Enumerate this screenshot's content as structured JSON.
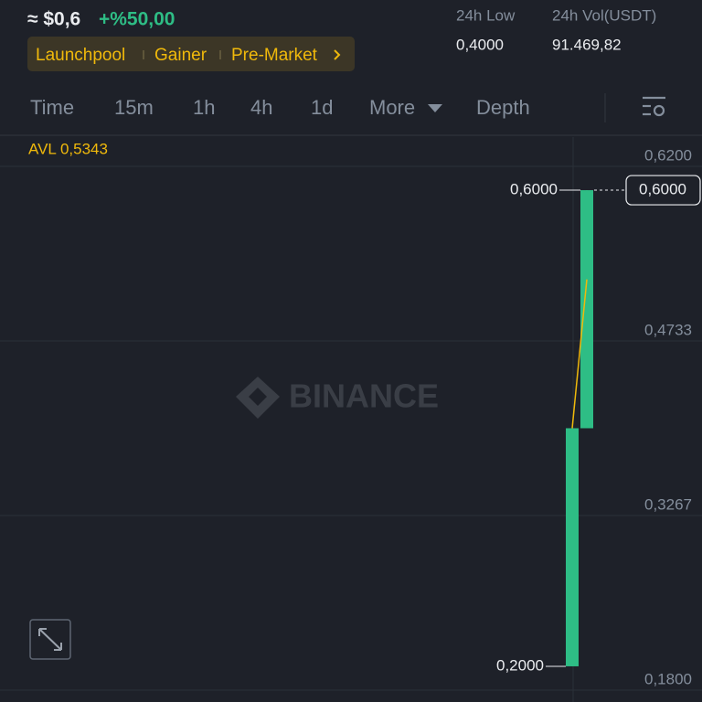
{
  "header": {
    "price": "≈ $0,6",
    "change": "+%50,00",
    "tags": [
      "Launchpool",
      "Gainer",
      "Pre-Market"
    ],
    "stats": [
      {
        "label": "24h Low",
        "value": "0,4000"
      },
      {
        "label": "24h Vol(USDT)",
        "value": "91.469,82"
      }
    ]
  },
  "tabs": {
    "items": [
      "Time",
      "15m",
      "1h",
      "4h",
      "1d",
      "More",
      "Depth"
    ],
    "active": 4
  },
  "chart_data": {
    "type": "candlestick",
    "watermark": "BINANCE",
    "categories": [
      null,
      null
    ],
    "open": [
      0.2,
      0.4
    ],
    "high": [
      0.4,
      0.6
    ],
    "low": [
      0.2,
      0.4
    ],
    "close": [
      0.4,
      0.6
    ],
    "color": "#2ebd85",
    "ma": {
      "name": "AVL 0,5343",
      "color": "#f0b90b",
      "values": [
        0.4,
        0.525
      ]
    },
    "ylim": [
      0.18,
      0.62
    ],
    "yticks": [
      {
        "value": 0.18,
        "label": "0,1800"
      },
      {
        "value": 0.3267,
        "label": "0,3267"
      },
      {
        "value": 0.4733,
        "label": "0,4733"
      },
      {
        "value": 0.62,
        "label": "0,6200"
      }
    ],
    "grid": true,
    "high_label": {
      "value": 0.6,
      "label": "0,6000"
    },
    "low_label": {
      "value": 0.2,
      "label": "0,2000"
    },
    "last_price": {
      "value": 0.6,
      "label": "0,6000"
    }
  }
}
